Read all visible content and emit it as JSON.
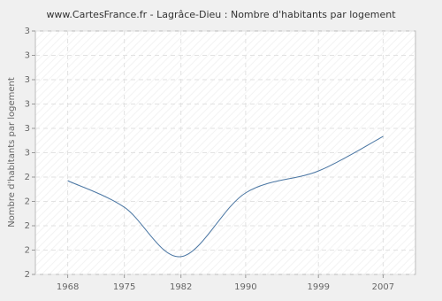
{
  "chart_data": {
    "type": "line",
    "title": "www.CartesFrance.fr - Lagrâce-Dieu : Nombre d'habitants par logement",
    "y_label": "Nombre d'habitants par logement",
    "x": [
      1968,
      1975,
      1982,
      1990,
      1999,
      2007
    ],
    "series": [
      {
        "name": "Nombre d'habitants par logement",
        "color": "#4a76a3",
        "values": [
          2.385,
          2.276,
          2.073,
          2.335,
          2.425,
          2.567
        ]
      }
    ],
    "xlim": [
      1964,
      2011
    ],
    "xticks": [
      1968,
      1975,
      1982,
      1990,
      1999,
      2007
    ],
    "ylim": [
      2,
      3
    ],
    "yticks": [
      {
        "value": 2,
        "label": "2"
      },
      {
        "value": 2.1,
        "label": "2"
      },
      {
        "value": 2.2,
        "label": "2"
      },
      {
        "value": 2.3,
        "label": "2"
      },
      {
        "value": 2.4,
        "label": "2"
      },
      {
        "value": 2.5,
        "label": "3"
      },
      {
        "value": 2.6,
        "label": "3"
      },
      {
        "value": 2.7,
        "label": "3"
      },
      {
        "value": 2.8,
        "label": "3"
      },
      {
        "value": 2.9,
        "label": "3"
      },
      {
        "value": 3,
        "label": "3"
      }
    ],
    "grid": true
  }
}
